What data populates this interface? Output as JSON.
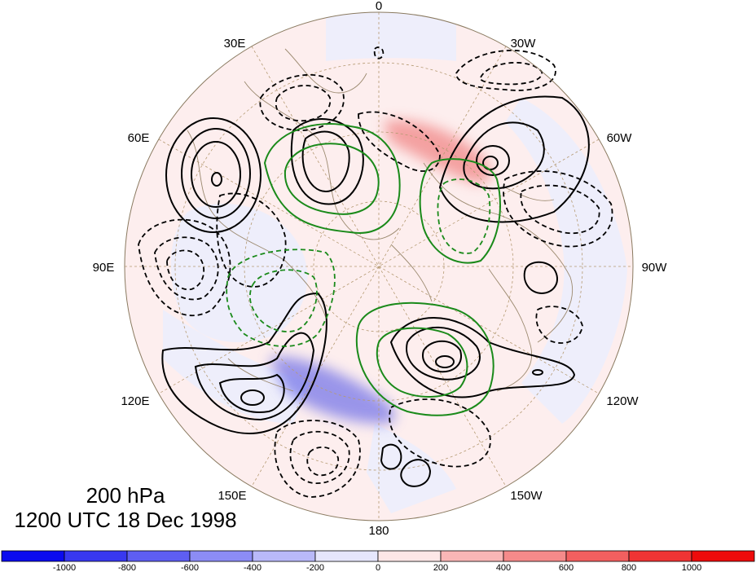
{
  "map": {
    "projection": "polar stereographic, north pole centered",
    "longitude_labels": {
      "top": "0",
      "upper_left": "30E",
      "upper_right": "30W",
      "left_upper": "60E",
      "right_upper": "60W",
      "left": "90E",
      "right": "90W",
      "left_lower": "120E",
      "right_lower": "120W",
      "lower_left": "150E",
      "lower_right": "150W",
      "bottom": "180"
    },
    "title_line1": "200 hPa",
    "title_line2": "1200 UTC 18 Dec 1998",
    "contour_colors": {
      "positive": "#000000",
      "negative_dashed": "#000000",
      "overlay": "#1a8a1a"
    }
  },
  "colorbar": {
    "ticks": [
      "-1000",
      "-800",
      "-600",
      "-400",
      "-200",
      "0",
      "200",
      "400",
      "600",
      "800",
      "1000"
    ],
    "colors": [
      "#0b0bef",
      "#3838f0",
      "#5e5ef2",
      "#8c8cf5",
      "#b9b9f9",
      "#e6e6fc",
      "#fde7e7",
      "#f9b6b6",
      "#f58a8a",
      "#f25f5f",
      "#ef3434",
      "#ee0b0b"
    ]
  }
}
